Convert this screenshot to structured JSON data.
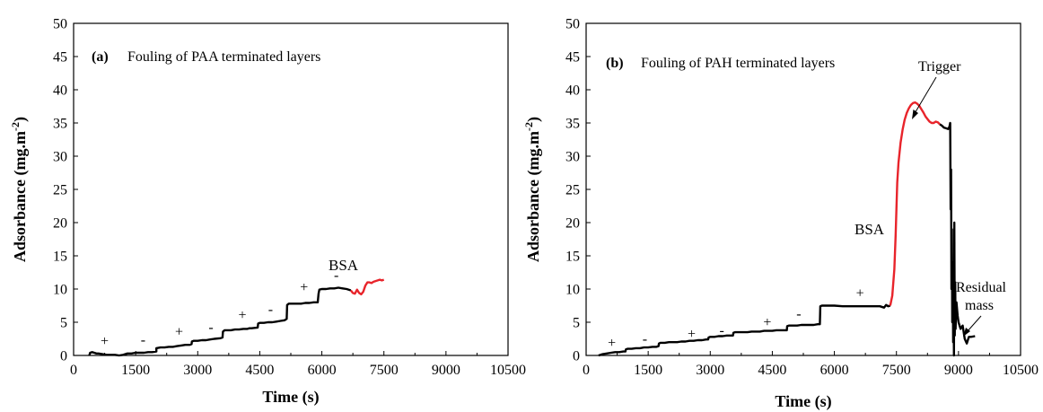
{
  "colors": {
    "layer": "#000000",
    "bsa": "#e8242b",
    "axis": "#000000"
  },
  "chart_data": [
    {
      "type": "line",
      "panel_letter": "(a)",
      "panel_desc": "Fouling of PAA terminated layers",
      "xlabel": "Time (s)",
      "ylabel": "Adsorbance (mg.m⁻²)",
      "xlim": [
        0,
        10500
      ],
      "ylim": [
        0,
        50
      ],
      "xticks": [
        0,
        1500,
        3000,
        4500,
        6000,
        7500,
        9000,
        10500
      ],
      "yticks": [
        0,
        5,
        10,
        15,
        20,
        25,
        30,
        35,
        40,
        45,
        50
      ],
      "series": [
        {
          "role": "layer",
          "x": [
            380,
            400,
            450,
            500,
            550,
            600,
            700,
            800,
            900,
            1000,
            1100,
            1200,
            1300,
            1400,
            1500,
            1600,
            1700,
            1800,
            1900,
            2000,
            2000,
            2100,
            2200,
            2300,
            2400,
            2500,
            2600,
            2700,
            2800,
            2850,
            2860,
            2900,
            3000,
            3100,
            3200,
            3300,
            3400,
            3550,
            3600,
            3610,
            3650,
            3700,
            3800,
            3900,
            4000,
            4100,
            4200,
            4250,
            4300,
            4450,
            4460,
            4500,
            4600,
            4700,
            4800,
            4900,
            5000,
            5100,
            5150,
            5160,
            5200,
            5300,
            5400,
            5500,
            5600,
            5700,
            5800,
            5900,
            5920,
            5940,
            6000,
            6100,
            6200,
            6300,
            6400,
            6500,
            6600,
            6700
          ],
          "y": [
            0,
            0.4,
            0.5,
            0.4,
            0.3,
            0.3,
            0.2,
            0.1,
            0.1,
            0.1,
            0,
            0.1,
            0.3,
            0.3,
            0.4,
            0.4,
            0.4,
            0.5,
            0.5,
            0.6,
            1.1,
            1.2,
            1.2,
            1.3,
            1.3,
            1.4,
            1.5,
            1.6,
            1.6,
            1.7,
            2.1,
            2.2,
            2.2,
            2.3,
            2.3,
            2.4,
            2.5,
            2.6,
            2.7,
            3.6,
            3.8,
            3.8,
            3.8,
            3.9,
            3.9,
            4,
            4,
            4.1,
            4.1,
            4.2,
            4.8,
            4.9,
            4.9,
            5,
            5,
            5.1,
            5.2,
            5.3,
            5.5,
            7.6,
            7.8,
            7.8,
            7.8,
            7.8,
            7.9,
            7.9,
            8,
            8,
            9.3,
            9.9,
            10,
            10,
            10.1,
            10.1,
            10.2,
            10.1,
            10,
            9.8
          ]
        },
        {
          "role": "bsa",
          "name": "BSA",
          "x": [
            6700,
            6750,
            6800,
            6850,
            6900,
            6950,
            7000,
            7050,
            7100,
            7150,
            7200,
            7250,
            7300,
            7350,
            7400,
            7450,
            7500
          ],
          "y": [
            9.8,
            9.4,
            9.3,
            9.9,
            9.4,
            9.2,
            9.6,
            10.5,
            11,
            11,
            10.9,
            11.1,
            11.2,
            11.3,
            11.4,
            11.3,
            11.4
          ]
        }
      ],
      "annotations": [
        {
          "text": "+",
          "x": 750,
          "y": 1.5
        },
        {
          "text": "-",
          "x": 1680,
          "y": 1.7
        },
        {
          "text": "+",
          "x": 2550,
          "y": 2.9
        },
        {
          "text": "-",
          "x": 3320,
          "y": 3.6
        },
        {
          "text": "+",
          "x": 4080,
          "y": 5.4
        },
        {
          "text": "-",
          "x": 4760,
          "y": 6.3
        },
        {
          "text": "+",
          "x": 5570,
          "y": 9.6
        },
        {
          "text": "-",
          "x": 6350,
          "y": 11.4
        }
      ]
    },
    {
      "type": "line",
      "panel_letter": "(b)",
      "panel_desc": "Fouling of PAH terminated layers",
      "xlabel": "Time (s)",
      "ylabel": "Adsorbance (mg.m⁻²)",
      "xlim": [
        0,
        10500
      ],
      "ylim": [
        0,
        50
      ],
      "xticks": [
        0,
        1500,
        3000,
        4500,
        6000,
        7500,
        9000,
        10500
      ],
      "yticks": [
        0,
        5,
        10,
        15,
        20,
        25,
        30,
        35,
        40,
        45,
        50
      ],
      "series": [
        {
          "role": "layer",
          "x": [
            300,
            350,
            400,
            500,
            600,
            700,
            800,
            900,
            950,
            960,
            1000,
            1100,
            1200,
            1300,
            1400,
            1500,
            1600,
            1700,
            1750,
            1760,
            1800,
            1900,
            2000,
            2100,
            2200,
            2300,
            2400,
            2500,
            2600,
            2700,
            2800,
            2900,
            2950,
            2960,
            3000,
            3100,
            3200,
            3300,
            3400,
            3500,
            3550,
            3560,
            3600,
            3700,
            3800,
            3900,
            4000,
            4100,
            4200,
            4300,
            4400,
            4500,
            4600,
            4700,
            4800,
            4850,
            4860,
            4900,
            5000,
            5100,
            5200,
            5300,
            5400,
            5500,
            5600,
            5650,
            5660,
            5700,
            5800,
            5900,
            6000,
            6200,
            6400,
            6600,
            6800,
            7000,
            7100,
            7200,
            7250,
            7300,
            7350
          ],
          "y": [
            0,
            0.1,
            0.2,
            0.3,
            0.4,
            0.5,
            0.5,
            0.6,
            0.6,
            0.9,
            1,
            1,
            1.1,
            1.1,
            1.2,
            1.2,
            1.3,
            1.3,
            1.4,
            1.8,
            1.9,
            1.9,
            2,
            2,
            2,
            2.1,
            2.1,
            2.2,
            2.2,
            2.3,
            2.3,
            2.4,
            2.4,
            2.7,
            2.8,
            2.8,
            2.9,
            2.9,
            3,
            3,
            3,
            3.4,
            3.5,
            3.5,
            3.5,
            3.5,
            3.6,
            3.6,
            3.6,
            3.7,
            3.7,
            3.7,
            3.8,
            3.8,
            3.8,
            3.8,
            4.4,
            4.5,
            4.5,
            4.5,
            4.6,
            4.6,
            4.6,
            4.6,
            4.7,
            4.7,
            7.4,
            7.5,
            7.5,
            7.5,
            7.5,
            7.4,
            7.4,
            7.4,
            7.4,
            7.4,
            7.4,
            7.2,
            7.6,
            7.4,
            7.5
          ]
        },
        {
          "role": "bsa",
          "name": "BSA",
          "x": [
            7350,
            7400,
            7450,
            7480,
            7500,
            7520,
            7550,
            7600,
            7650,
            7700,
            7750,
            7800,
            7850,
            7900,
            7950,
            8000,
            8050,
            8100,
            8150,
            8200,
            8250,
            8300,
            8350,
            8400,
            8450,
            8500,
            8550
          ],
          "y": [
            7.5,
            9,
            13,
            18,
            22,
            26,
            29,
            32,
            34,
            35.5,
            36.5,
            37.2,
            37.7,
            38,
            38.1,
            37.9,
            37.6,
            37.1,
            36.6,
            36,
            35.6,
            35.2,
            35,
            35,
            35.2,
            35.1,
            34.8
          ]
        },
        {
          "role": "layer",
          "x": [
            8550,
            8600,
            8650,
            8700,
            8750,
            8780,
            8800,
            8810,
            8820,
            8830,
            8840,
            8850,
            8860,
            8870,
            8880,
            8890,
            8900,
            8910,
            8920,
            8930,
            8950,
            8980,
            9000,
            9050,
            9100,
            9150,
            9200,
            9250,
            9300,
            9400
          ],
          "y": [
            34.8,
            34.6,
            34.3,
            34.2,
            34.1,
            34.4,
            35,
            22,
            28,
            10,
            19,
            5,
            14,
            2,
            9,
            0,
            20,
            3,
            11,
            4,
            8,
            6,
            5,
            4,
            4.5,
            2.5,
            1.8,
            2.8,
            2.8,
            2.9
          ]
        }
      ],
      "annotations": [
        {
          "text": "+",
          "x": 620,
          "y": 1.2
        },
        {
          "text": "-",
          "x": 1420,
          "y": 1.8
        },
        {
          "text": "+",
          "x": 2550,
          "y": 2.6
        },
        {
          "text": "-",
          "x": 3280,
          "y": 3.1
        },
        {
          "text": "+",
          "x": 4380,
          "y": 4.3
        },
        {
          "text": "-",
          "x": 5140,
          "y": 5.6
        },
        {
          "text": "+",
          "x": 6620,
          "y": 8.7
        }
      ],
      "trigger_label": "Trigger",
      "residual_label_1": "Residual",
      "residual_label_2": "mass"
    }
  ]
}
